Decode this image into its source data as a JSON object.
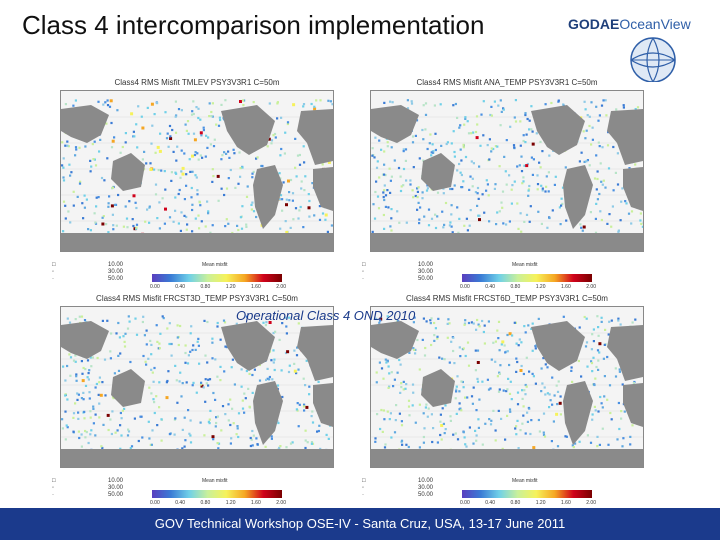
{
  "slide": {
    "title": "Class 4 intercomparison implementation",
    "caption": "Operational Class 4 OND 2010",
    "footer": "GOV Technical Workshop OSE-IV - Santa Cruz, USA, 13-17 June 2011"
  },
  "logo": {
    "bold": "GODAE",
    "light": "OceanView"
  },
  "panels": [
    {
      "title": "Class4 RMS Misfit TMLEV PSY3V3R1 C=50m",
      "hot": 1.0
    },
    {
      "title": "Class4 RMS Misfit ANA_TEMP PSY3V3R1 C=50m",
      "hot": 0.35
    },
    {
      "title": "Class4 RMS Misfit FRCST3D_TEMP PSY3V3R1 C=50m",
      "hot": 0.3
    },
    {
      "title": "Class4 RMS Misfit FRCST6D_TEMP PSY3V3R1 C=50m",
      "hot": 0.3
    }
  ],
  "legend": {
    "labels": "nb_data  >=\n  nb_data  >=\n  nb_data  >=",
    "values": [
      "10.00",
      "30.00",
      "50.00"
    ],
    "mean_label": "Mean misfit",
    "ticks": [
      "0.00",
      "0.40",
      "0.80",
      "1.20",
      "1.60",
      "2.00"
    ]
  },
  "colors": {
    "footer_bg": "#1b3a8c",
    "caption": "#1a3a8a",
    "land": "#8a8a8a"
  }
}
